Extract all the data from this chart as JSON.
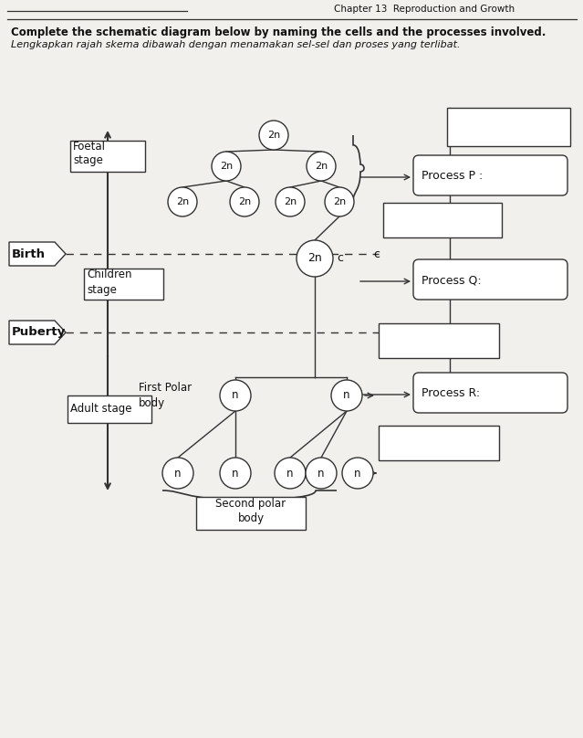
{
  "title_right": "Chapter 13  Reproduction and Growth",
  "instruction_en": "Complete the schematic diagram below by naming the cells and the processes involved.",
  "instruction_my": "Lengkapkan rajah skema dibawah dengan menamakan sel-sel dan proses yang terlibat.",
  "bg_color": "#f2f0ec",
  "lc": "#333333",
  "process_p": "Process P :",
  "process_q": "Process Q:",
  "process_r": "Process R:",
  "foetal": "Foetal\nstage",
  "birth": "Birth",
  "children": "Children\nstage",
  "puberty": "Puberty",
  "adult": "Adult stage",
  "first_polar": "First Polar\nbody",
  "second_polar": "Second polar\nbody",
  "c_label": "c"
}
